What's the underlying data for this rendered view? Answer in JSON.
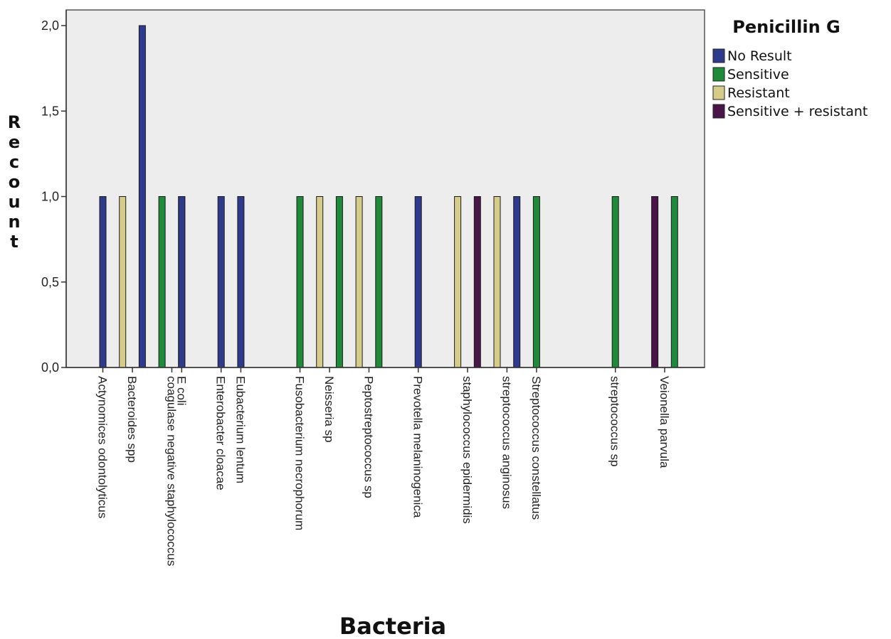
{
  "chart_data": {
    "type": "bar",
    "title": "",
    "xlabel": "Bacteria",
    "ylabel": "Recount",
    "ylim": [
      0,
      2.1
    ],
    "yticks": [
      {
        "value": 0.0,
        "label": "0,0"
      },
      {
        "value": 0.5,
        "label": "0,5"
      },
      {
        "value": 1.0,
        "label": "1,0"
      },
      {
        "value": 1.5,
        "label": "1,5"
      },
      {
        "value": 2.0,
        "label": "2,0"
      }
    ],
    "grid": false,
    "legend": {
      "title": "Penicillin G",
      "position": "right",
      "entries": [
        {
          "name": "No Result",
          "color": "#2e3b8c"
        },
        {
          "name": "Sensitive",
          "color": "#1f8a3a"
        },
        {
          "name": "Resistant",
          "color": "#d6cc8a"
        },
        {
          "name": "Sensitive + resistant",
          "color": "#4a1548"
        }
      ]
    },
    "categories": [
      "Actynomices odontolyticus",
      "Bacteroides spp",
      "coagulase negative staphylococcus",
      "E coli",
      "Enterobacter cloacae",
      "Eubacterium lentum",
      "Fusobacterium necrophorum",
      "Neisseria sp",
      "Peptostreptococcus sp",
      "Prevotella melaninogenica",
      "staphylococcus epidermidis",
      "streptococcus anginosus",
      "Streptococcus constellatus",
      "streptococcus sp",
      "Veionella parvula"
    ],
    "series": [
      {
        "name": "No Result",
        "color": "#2e3b8c",
        "values": [
          1,
          2,
          1,
          1,
          1,
          1,
          0,
          0,
          0,
          1,
          0,
          1,
          0,
          0,
          0
        ]
      },
      {
        "name": "Sensitive",
        "color": "#1f8a3a",
        "values": [
          0,
          0,
          1,
          0,
          0,
          0,
          1,
          1,
          1,
          0,
          0,
          0,
          1,
          1,
          1
        ]
      },
      {
        "name": "Resistant",
        "color": "#d6cc8a",
        "values": [
          0,
          1,
          0,
          0,
          0,
          0,
          0,
          1,
          1,
          0,
          1,
          1,
          0,
          0,
          0
        ]
      },
      {
        "name": "Sensitive + resistant",
        "color": "#4a1548",
        "values": [
          0,
          0,
          0,
          0,
          0,
          0,
          0,
          0,
          0,
          0,
          1,
          0,
          0,
          0,
          1
        ]
      }
    ]
  }
}
